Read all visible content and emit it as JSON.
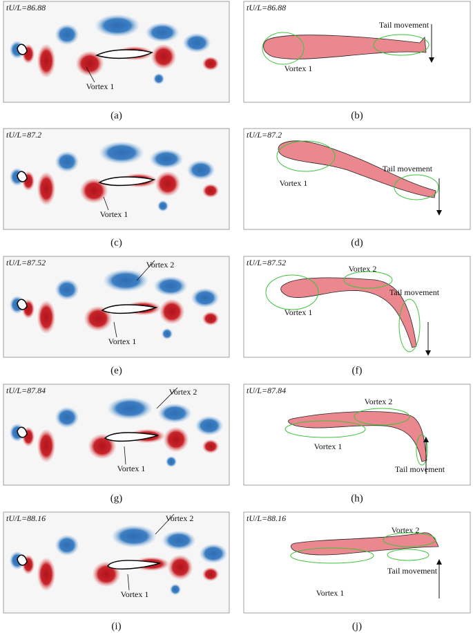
{
  "rows": [
    {
      "left": {
        "time": "tU/L=86.88",
        "labels": [
          "Vortex 1"
        ],
        "caption": "(a)"
      },
      "right": {
        "time": "tU/L=86.88",
        "labels": [
          "Tail movement",
          "Vortex 1"
        ],
        "caption": "(b)"
      }
    },
    {
      "left": {
        "time": "tU/L=87.2",
        "labels": [
          "Vortex 1"
        ],
        "caption": "(c)"
      },
      "right": {
        "time": "tU/L=87.2",
        "labels": [
          "Vortex 1",
          "Tail movement"
        ],
        "caption": "(d)"
      }
    },
    {
      "left": {
        "time": "tU/L=87.52",
        "labels": [
          "Vortex 2",
          "Vortex 1"
        ],
        "caption": "(e)"
      },
      "right": {
        "time": "tU/L=87.52",
        "labels": [
          "Vortex 2",
          "Tail movement",
          "Vortex 1"
        ],
        "caption": "(f)"
      }
    },
    {
      "left": {
        "time": "tU/L=87.84",
        "labels": [
          "Vortex 2",
          "Vortex 1"
        ],
        "caption": "(g)"
      },
      "right": {
        "time": "tU/L=87.84",
        "labels": [
          "Vortex 2",
          "Vortex 1",
          "Tail movement"
        ],
        "caption": "(h)"
      }
    },
    {
      "left": {
        "time": "tU/L=88.16",
        "labels": [
          "Vortex 2",
          "Vortex 1"
        ],
        "caption": "(i)"
      },
      "right": {
        "time": "tU/L=88.16",
        "labels": [
          "Vortex 2",
          "Tail movement",
          "Vortex 1"
        ],
        "caption": "(j)"
      }
    }
  ]
}
